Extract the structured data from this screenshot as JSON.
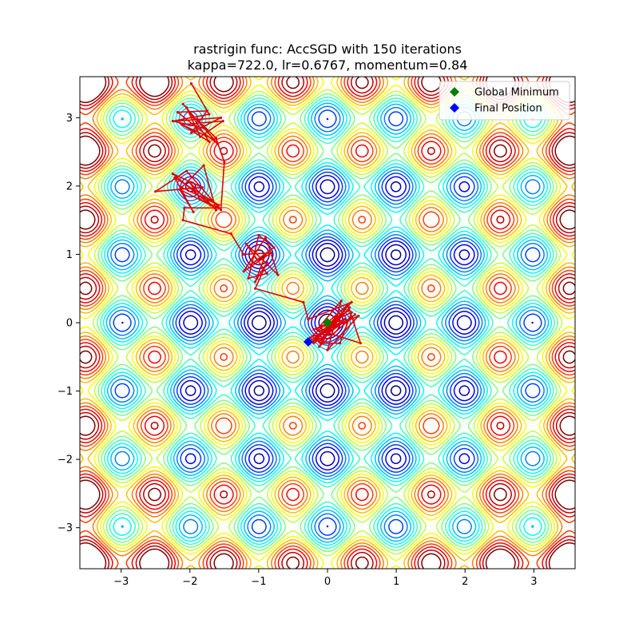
{
  "chart_data": {
    "type": "contour",
    "title_line1": "rastrigin func: AccSGD with 150 iterations",
    "title_line2": "kappa=722.0, lr=0.6767, momentum=0.84",
    "function": "rastrigin",
    "xlim": [
      -3.6,
      3.6
    ],
    "ylim": [
      -3.6,
      3.6
    ],
    "x_ticks": [
      -3,
      -2,
      -1,
      0,
      1,
      2,
      3
    ],
    "y_ticks": [
      -3,
      -2,
      -1,
      0,
      1,
      2,
      3
    ],
    "tick_labels": [
      "−3",
      "−2",
      "−1",
      "0",
      "1",
      "2",
      "3"
    ],
    "contour_levels": [
      3,
      6,
      9,
      12,
      15,
      18,
      21,
      24,
      27,
      30,
      33,
      36,
      39,
      42,
      45,
      48,
      51
    ],
    "colormap": "jet",
    "legend_placement": "top-right",
    "legend": [
      {
        "label": "Global Minimum",
        "color": "#008000",
        "marker": "diamond"
      },
      {
        "label": "Final Position",
        "color": "#0000ff",
        "marker": "diamond"
      }
    ],
    "global_minimum": {
      "x": 0.0,
      "y": 0.0
    },
    "final_position": {
      "x": -0.28,
      "y": -0.28
    },
    "path_color": "#e00000",
    "path": [
      [
        -1.98,
        3.5
      ],
      [
        -1.72,
        3.05
      ],
      [
        -2.25,
        2.95
      ],
      [
        -1.8,
        2.85
      ],
      [
        -2.1,
        3.2
      ],
      [
        -1.6,
        2.62
      ],
      [
        -2.18,
        3.08
      ],
      [
        -1.75,
        3.1
      ],
      [
        -1.98,
        2.78
      ],
      [
        -1.55,
        3.0
      ],
      [
        -2.2,
        2.95
      ],
      [
        -1.72,
        2.65
      ],
      [
        -2.05,
        3.15
      ],
      [
        -1.85,
        2.72
      ],
      [
        -1.52,
        2.95
      ],
      [
        -2.12,
        2.9
      ],
      [
        -1.65,
        2.68
      ],
      [
        -1.9,
        2.98
      ],
      [
        -1.62,
        2.7
      ],
      [
        -1.5,
        2.35
      ],
      [
        -1.55,
        1.65
      ],
      [
        -2.05,
        2.22
      ],
      [
        -2.5,
        1.92
      ],
      [
        -1.82,
        1.98
      ],
      [
        -2.25,
        2.18
      ],
      [
        -1.7,
        1.72
      ],
      [
        -2.15,
        1.95
      ],
      [
        -1.95,
        1.62
      ],
      [
        -2.22,
        2.12
      ],
      [
        -1.58,
        1.72
      ],
      [
        -2.12,
        1.98
      ],
      [
        -1.8,
        2.3
      ],
      [
        -1.62,
        1.65
      ],
      [
        -2.0,
        2.05
      ],
      [
        -1.85,
        1.8
      ],
      [
        -1.58,
        1.68
      ],
      [
        -2.08,
        1.68
      ],
      [
        -2.1,
        1.5
      ],
      [
        -1.4,
        1.3
      ],
      [
        -1.22,
        1.0
      ],
      [
        -0.82,
        1.02
      ],
      [
        -1.22,
        0.75
      ],
      [
        -0.9,
        1.25
      ],
      [
        -0.72,
        0.7
      ],
      [
        -1.18,
        1.15
      ],
      [
        -0.88,
        0.72
      ],
      [
        -1.15,
        0.65
      ],
      [
        -1.0,
        1.28
      ],
      [
        -0.78,
        1.1
      ],
      [
        -1.12,
        0.85
      ],
      [
        -0.9,
        1.0
      ],
      [
        -1.05,
        0.6
      ],
      [
        -0.88,
        0.88
      ],
      [
        -1.05,
        0.5
      ],
      [
        -0.35,
        0.3
      ],
      [
        -0.28,
        0.05
      ],
      [
        0.35,
        0.3
      ],
      [
        -0.2,
        -0.3
      ],
      [
        0.4,
        0.12
      ],
      [
        -0.12,
        -0.35
      ],
      [
        0.28,
        0.25
      ],
      [
        -0.25,
        -0.22
      ],
      [
        0.45,
        0.1
      ],
      [
        0.0,
        -0.4
      ],
      [
        0.2,
        0.32
      ],
      [
        -0.15,
        -0.1
      ],
      [
        0.48,
        -0.3
      ],
      [
        0.3,
        0.25
      ],
      [
        -0.1,
        -0.3
      ],
      [
        0.18,
        -0.3
      ],
      [
        0.35,
        0.15
      ],
      [
        -0.2,
        -0.1
      ],
      [
        0.25,
        0.05
      ],
      [
        -0.12,
        -0.28
      ],
      [
        0.32,
        0.22
      ],
      [
        -0.05,
        -0.2
      ],
      [
        0.18,
        0.12
      ],
      [
        -0.18,
        -0.25
      ],
      [
        0.3,
        0.18
      ],
      [
        -0.08,
        -0.12
      ],
      [
        0.22,
        0.02
      ],
      [
        -0.15,
        -0.2
      ],
      [
        0.12,
        0.08
      ],
      [
        -0.22,
        -0.28
      ],
      [
        0.08,
        -0.05
      ],
      [
        -0.28,
        -0.28
      ]
    ]
  }
}
